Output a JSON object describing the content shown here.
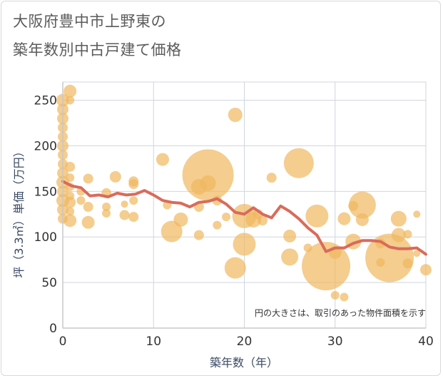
{
  "chart_data": {
    "type": "scatter",
    "title_line1": "大阪府豊中市上野東の",
    "title_line2": "築年数別中古戸建て価格",
    "xlabel": "築年数（年）",
    "ylabel": "坪（3.3㎡）単価（万円）",
    "xlim": [
      0,
      40
    ],
    "ylim": [
      0,
      270
    ],
    "x_ticks": [
      0,
      10,
      20,
      30,
      40
    ],
    "y_ticks": [
      0,
      50,
      100,
      150,
      200,
      250
    ],
    "note": "円の大きさは、取引のあった物件面積を示す",
    "colors": {
      "bubble": "#f0b860",
      "line": "#d96b5a",
      "grid": "#cfd6e0",
      "axis": "#c8c8c8"
    },
    "bubbles": [
      {
        "x": 0,
        "y": 250,
        "s": 9
      },
      {
        "x": 0,
        "y": 240,
        "s": 8
      },
      {
        "x": 0,
        "y": 230,
        "s": 8
      },
      {
        "x": 0,
        "y": 220,
        "s": 7
      },
      {
        "x": 0,
        "y": 210,
        "s": 7
      },
      {
        "x": 0,
        "y": 200,
        "s": 8
      },
      {
        "x": 0,
        "y": 190,
        "s": 7
      },
      {
        "x": 0,
        "y": 180,
        "s": 7
      },
      {
        "x": 0,
        "y": 170,
        "s": 8
      },
      {
        "x": 0,
        "y": 160,
        "s": 9
      },
      {
        "x": 0,
        "y": 150,
        "s": 8
      },
      {
        "x": 0,
        "y": 140,
        "s": 9
      },
      {
        "x": 0,
        "y": 130,
        "s": 8
      },
      {
        "x": 0,
        "y": 120,
        "s": 7
      },
      {
        "x": 0.8,
        "y": 260,
        "s": 9
      },
      {
        "x": 0.8,
        "y": 250,
        "s": 6
      },
      {
        "x": 0.8,
        "y": 177,
        "s": 7
      },
      {
        "x": 0.8,
        "y": 165,
        "s": 6
      },
      {
        "x": 0.8,
        "y": 155,
        "s": 6
      },
      {
        "x": 0.8,
        "y": 145,
        "s": 6
      },
      {
        "x": 0.8,
        "y": 138,
        "s": 8
      },
      {
        "x": 0.8,
        "y": 128,
        "s": 6
      },
      {
        "x": 0.8,
        "y": 118,
        "s": 9
      },
      {
        "x": 2,
        "y": 150,
        "s": 6
      },
      {
        "x": 2,
        "y": 140,
        "s": 6
      },
      {
        "x": 2.8,
        "y": 164,
        "s": 7
      },
      {
        "x": 2.8,
        "y": 133,
        "s": 7
      },
      {
        "x": 2.8,
        "y": 116,
        "s": 9
      },
      {
        "x": 4.8,
        "y": 148,
        "s": 7
      },
      {
        "x": 4.8,
        "y": 133,
        "s": 6
      },
      {
        "x": 4.8,
        "y": 126,
        "s": 6
      },
      {
        "x": 5.8,
        "y": 166,
        "s": 8
      },
      {
        "x": 6.8,
        "y": 136,
        "s": 5
      },
      {
        "x": 6.8,
        "y": 124,
        "s": 7
      },
      {
        "x": 7.8,
        "y": 161,
        "s": 7
      },
      {
        "x": 7.8,
        "y": 158,
        "s": 7
      },
      {
        "x": 7.8,
        "y": 140,
        "s": 6
      },
      {
        "x": 7.8,
        "y": 122,
        "s": 7
      },
      {
        "x": 11,
        "y": 185,
        "s": 9
      },
      {
        "x": 11.5,
        "y": 135,
        "s": 6
      },
      {
        "x": 12,
        "y": 106,
        "s": 15
      },
      {
        "x": 13,
        "y": 119,
        "s": 10
      },
      {
        "x": 15,
        "y": 155,
        "s": 11
      },
      {
        "x": 15,
        "y": 133,
        "s": 7
      },
      {
        "x": 15,
        "y": 102,
        "s": 7
      },
      {
        "x": 16,
        "y": 168,
        "s": 36
      },
      {
        "x": 16,
        "y": 159,
        "s": 11
      },
      {
        "x": 17,
        "y": 140,
        "s": 7
      },
      {
        "x": 17,
        "y": 113,
        "s": 6
      },
      {
        "x": 18,
        "y": 122,
        "s": 6
      },
      {
        "x": 19,
        "y": 234,
        "s": 10
      },
      {
        "x": 19,
        "y": 66,
        "s": 15
      },
      {
        "x": 20,
        "y": 123,
        "s": 17
      },
      {
        "x": 20,
        "y": 92,
        "s": 16
      },
      {
        "x": 21,
        "y": 119,
        "s": 11
      },
      {
        "x": 21.5,
        "y": 125,
        "s": 7
      },
      {
        "x": 22,
        "y": 118,
        "s": 7
      },
      {
        "x": 23,
        "y": 165,
        "s": 7
      },
      {
        "x": 25,
        "y": 101,
        "s": 9
      },
      {
        "x": 25,
        "y": 78,
        "s": 12
      },
      {
        "x": 26,
        "y": 181,
        "s": 21
      },
      {
        "x": 27,
        "y": 88,
        "s": 6
      },
      {
        "x": 28,
        "y": 123,
        "s": 16
      },
      {
        "x": 29,
        "y": 68,
        "s": 34
      },
      {
        "x": 30,
        "y": 83,
        "s": 9
      },
      {
        "x": 30,
        "y": 36,
        "s": 6
      },
      {
        "x": 31,
        "y": 120,
        "s": 9
      },
      {
        "x": 31,
        "y": 34,
        "s": 6
      },
      {
        "x": 32,
        "y": 95,
        "s": 11
      },
      {
        "x": 32,
        "y": 134,
        "s": 7
      },
      {
        "x": 33,
        "y": 135,
        "s": 19
      },
      {
        "x": 33,
        "y": 119,
        "s": 9
      },
      {
        "x": 35,
        "y": 93,
        "s": 7
      },
      {
        "x": 36,
        "y": 77,
        "s": 34
      },
      {
        "x": 35,
        "y": 72,
        "s": 6
      },
      {
        "x": 37,
        "y": 120,
        "s": 11
      },
      {
        "x": 37,
        "y": 102,
        "s": 10
      },
      {
        "x": 38,
        "y": 103,
        "s": 6
      },
      {
        "x": 38,
        "y": 71,
        "s": 7
      },
      {
        "x": 39,
        "y": 125,
        "s": 5
      },
      {
        "x": 39,
        "y": 82,
        "s": 5
      },
      {
        "x": 40,
        "y": 64,
        "s": 8
      }
    ],
    "trend": {
      "x": [
        0,
        1,
        2,
        3,
        4,
        5,
        6,
        7,
        8,
        9,
        10,
        11,
        12,
        13,
        14,
        15,
        16,
        17,
        18,
        19,
        20,
        21,
        22,
        23,
        24,
        25,
        26,
        27,
        28,
        29,
        30,
        31,
        32,
        33,
        34,
        35,
        36,
        37,
        38,
        39,
        40
      ],
      "y": [
        161,
        156,
        154,
        145,
        146,
        144,
        148,
        146,
        147,
        151,
        146,
        140,
        138,
        137,
        133,
        138,
        139,
        142,
        136,
        127,
        125,
        132,
        125,
        121,
        134,
        128,
        120,
        110,
        102,
        84,
        88,
        88,
        93,
        96,
        96,
        95,
        89,
        87,
        87,
        88,
        81
      ]
    }
  }
}
